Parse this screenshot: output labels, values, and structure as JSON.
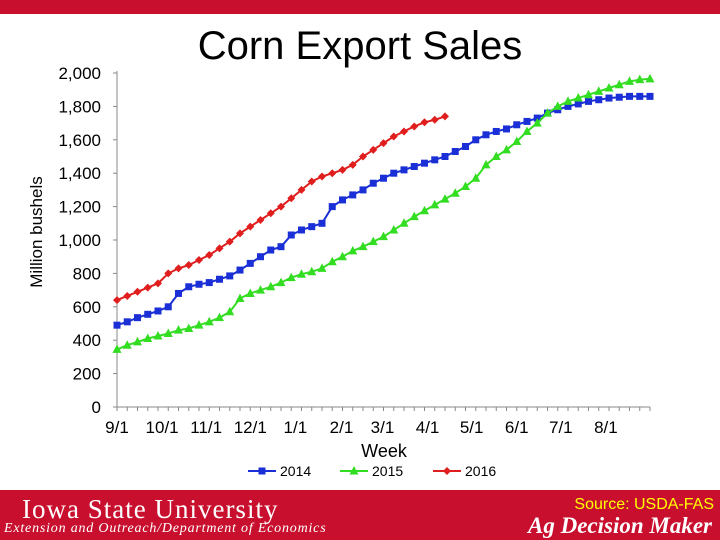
{
  "title": "Corn Export Sales",
  "footer": {
    "university": "Iowa State University",
    "department": "Extension and Outreach/Department of Economics",
    "source": "Source: USDA-FAS",
    "brand": "Ag Decision Maker"
  },
  "colors": {
    "brand_red": "#c8102e",
    "series_2014": "#1a2fd6",
    "series_2015": "#33dd22",
    "series_2016": "#e01e1e"
  },
  "chart_data": {
    "type": "line",
    "title": "Corn Export Sales",
    "xlabel": "Week",
    "ylabel": "Million bushels",
    "ylim": [
      0,
      2000
    ],
    "yticks": [
      0,
      200,
      400,
      600,
      800,
      1000,
      1200,
      1400,
      1600,
      1800,
      2000
    ],
    "ytick_labels": [
      "0",
      "200",
      "400",
      "600",
      "800",
      "1,000",
      "1,200",
      "1,400",
      "1,600",
      "1,800",
      "2,000"
    ],
    "xtick_labels": [
      "9/1",
      "10/1",
      "11/1",
      "12/1",
      "1/1",
      "2/1",
      "3/1",
      "4/1",
      "5/1",
      "6/1",
      "7/1",
      "8/1"
    ],
    "week_count": 53,
    "grid": false,
    "legend": "bottom",
    "series": [
      {
        "name": "2014",
        "marker": "square",
        "values": [
          490,
          510,
          535,
          555,
          575,
          600,
          680,
          720,
          735,
          745,
          765,
          785,
          820,
          860,
          900,
          940,
          960,
          1030,
          1060,
          1080,
          1100,
          1200,
          1240,
          1270,
          1300,
          1340,
          1370,
          1400,
          1420,
          1440,
          1460,
          1480,
          1500,
          1530,
          1560,
          1600,
          1630,
          1650,
          1665,
          1690,
          1710,
          1730,
          1760,
          1780,
          1800,
          1815,
          1830,
          1840,
          1850,
          1855,
          1860,
          1860,
          1860
        ]
      },
      {
        "name": "2015",
        "marker": "triangle",
        "values": [
          345,
          370,
          390,
          410,
          425,
          440,
          460,
          470,
          490,
          510,
          535,
          570,
          650,
          680,
          700,
          720,
          745,
          775,
          795,
          810,
          830,
          870,
          900,
          935,
          960,
          990,
          1020,
          1060,
          1100,
          1140,
          1175,
          1210,
          1245,
          1280,
          1320,
          1370,
          1450,
          1500,
          1540,
          1590,
          1650,
          1700,
          1760,
          1800,
          1830,
          1850,
          1870,
          1890,
          1910,
          1930,
          1950,
          1960,
          1965
        ]
      },
      {
        "name": "2016",
        "marker": "diamond",
        "values": [
          640,
          665,
          690,
          715,
          740,
          800,
          830,
          850,
          880,
          910,
          950,
          990,
          1040,
          1080,
          1120,
          1160,
          1200,
          1250,
          1300,
          1350,
          1380,
          1400,
          1420,
          1450,
          1500,
          1540,
          1580,
          1620,
          1650,
          1680,
          1705,
          1720,
          1740
        ]
      }
    ]
  }
}
